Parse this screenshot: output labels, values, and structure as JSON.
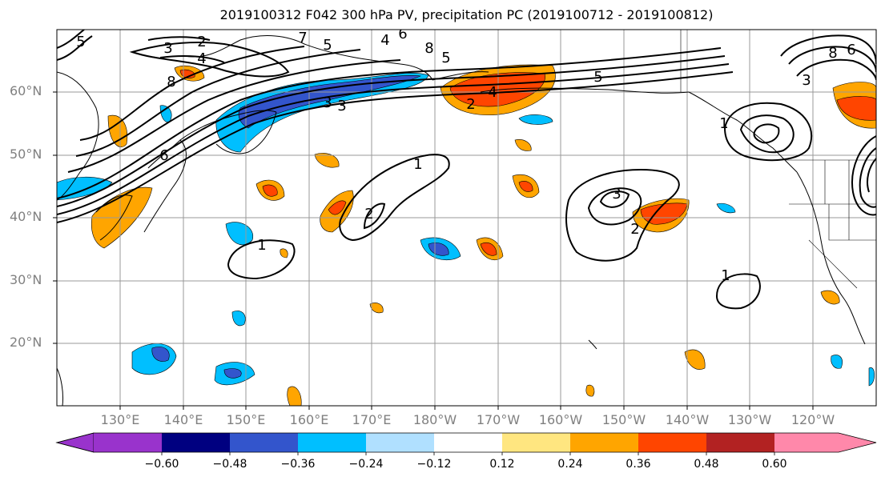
{
  "title": "2019100312 F042 300 hPa PV, precipitation PC (2019100712 - 2019100812)",
  "lat_labels": [
    "60°N",
    "50°N",
    "40°N",
    "30°N",
    "20°N"
  ],
  "lon_labels": [
    "130°E",
    "140°E",
    "150°E",
    "160°E",
    "170°E",
    "180°W",
    "170°W",
    "160°W",
    "150°W",
    "140°W",
    "130°W",
    "120°W"
  ],
  "colorbar": {
    "colors": [
      "#9933cc",
      "#000080",
      "#3355cc",
      "#00bfff",
      "#b0e0ff",
      "#ffffff",
      "#ffe680",
      "#ffa500",
      "#ff4500",
      "#b22222",
      "#ff88aa"
    ],
    "labels": [
      "−0.60",
      "−0.48",
      "−0.36",
      "−0.24",
      "−0.12",
      "0.12",
      "0.24",
      "0.36",
      "0.48",
      "0.60"
    ]
  },
  "contour_labels": [
    "5",
    "3",
    "2",
    "4",
    "8",
    "7",
    "5",
    "4",
    "6",
    "8",
    "5",
    "5",
    "4",
    "2",
    "6",
    "3",
    "3",
    "1",
    "2",
    "1",
    "3",
    "2",
    "1",
    "1",
    "3",
    "6",
    "8"
  ]
}
